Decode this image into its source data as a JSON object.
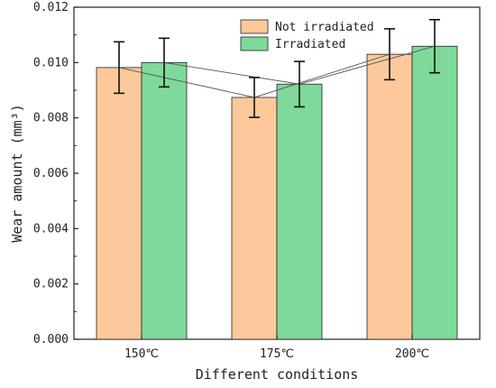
{
  "chart_data": {
    "type": "bar",
    "xlabel": "Different conditions",
    "ylabel": "Wear amount (mm³)",
    "ylim": [
      0,
      0.012
    ],
    "yticks": [
      "0.000",
      "0.002",
      "0.004",
      "0.006",
      "0.008",
      "0.010",
      "0.012"
    ],
    "categories": [
      "150℃",
      "175℃",
      "200℃"
    ],
    "legend_position": "top-center",
    "series": [
      {
        "name": "Not irradiated",
        "color": "#fdc99b",
        "values": [
          0.00982,
          0.00874,
          0.0103
        ],
        "errors": [
          0.00093,
          0.00072,
          0.00092
        ]
      },
      {
        "name": "Irradiated",
        "color": "#7fd99a",
        "values": [
          0.01,
          0.00922,
          0.01059
        ],
        "errors": [
          0.00088,
          0.00082,
          0.00096
        ]
      }
    ],
    "connecting_lines": true,
    "grid": false
  }
}
